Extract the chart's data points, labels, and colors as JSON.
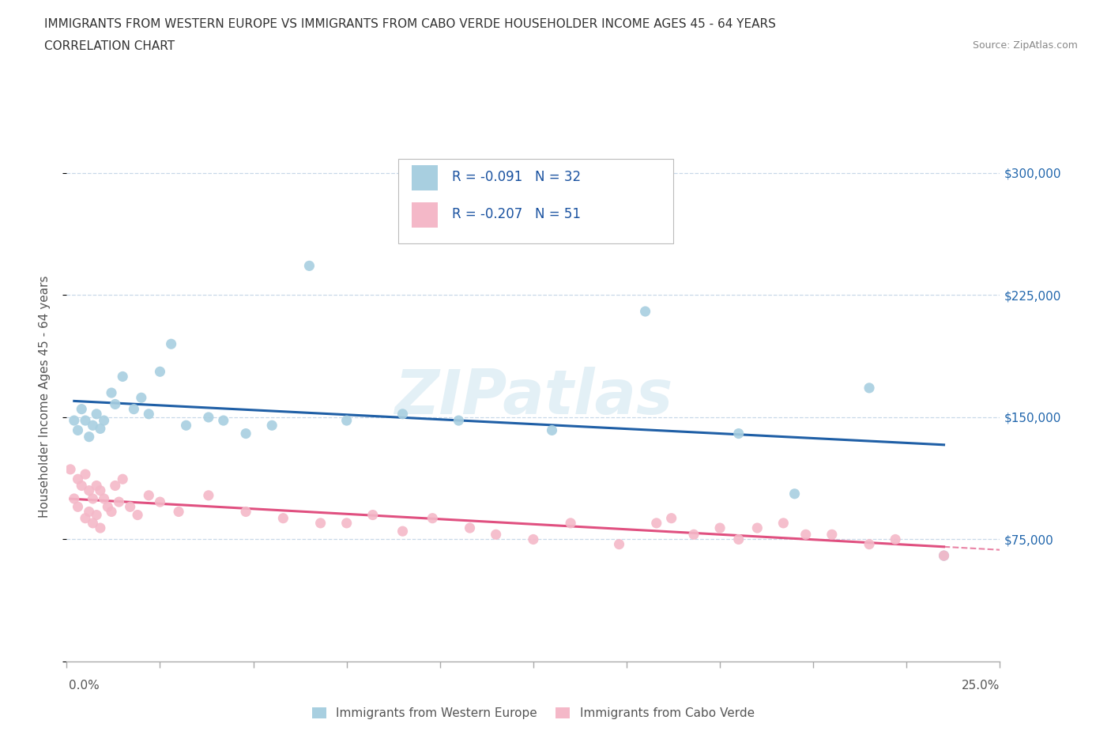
{
  "title_line1": "IMMIGRANTS FROM WESTERN EUROPE VS IMMIGRANTS FROM CABO VERDE HOUSEHOLDER INCOME AGES 45 - 64 YEARS",
  "title_line2": "CORRELATION CHART",
  "source": "Source: ZipAtlas.com",
  "ylabel": "Householder Income Ages 45 - 64 years",
  "xlim": [
    0.0,
    0.25
  ],
  "ylim": [
    0,
    325000
  ],
  "xticks": [
    0.0,
    0.025,
    0.05,
    0.075,
    0.1,
    0.125,
    0.15,
    0.175,
    0.2,
    0.225,
    0.25
  ],
  "yticks": [
    0,
    75000,
    150000,
    225000,
    300000
  ],
  "ytick_labels": [
    "",
    "$75,000",
    "$150,000",
    "$225,000",
    "$300,000"
  ],
  "legend_series1": "Immigrants from Western Europe",
  "legend_series2": "Immigrants from Cabo Verde",
  "color1": "#a8cfe0",
  "color2": "#f4b8c8",
  "trendline_color1": "#1f5fa6",
  "trendline_color2": "#e05080",
  "watermark_text": "ZIPatlas",
  "background_color": "#ffffff",
  "grid_color": "#c8d8e8",
  "western_europe_x": [
    0.002,
    0.003,
    0.004,
    0.005,
    0.006,
    0.007,
    0.008,
    0.009,
    0.01,
    0.012,
    0.013,
    0.015,
    0.018,
    0.02,
    0.022,
    0.025,
    0.028,
    0.032,
    0.038,
    0.042,
    0.048,
    0.055,
    0.065,
    0.075,
    0.09,
    0.105,
    0.13,
    0.155,
    0.18,
    0.195,
    0.215,
    0.235
  ],
  "western_europe_y": [
    148000,
    142000,
    155000,
    148000,
    138000,
    145000,
    152000,
    143000,
    148000,
    165000,
    158000,
    175000,
    155000,
    162000,
    152000,
    178000,
    195000,
    145000,
    150000,
    148000,
    140000,
    145000,
    243000,
    148000,
    152000,
    148000,
    142000,
    215000,
    140000,
    103000,
    168000,
    65000
  ],
  "cabo_verde_x": [
    0.001,
    0.002,
    0.003,
    0.003,
    0.004,
    0.005,
    0.005,
    0.006,
    0.006,
    0.007,
    0.007,
    0.008,
    0.008,
    0.009,
    0.009,
    0.01,
    0.011,
    0.012,
    0.013,
    0.014,
    0.015,
    0.017,
    0.019,
    0.022,
    0.025,
    0.03,
    0.038,
    0.048,
    0.058,
    0.068,
    0.075,
    0.082,
    0.09,
    0.098,
    0.108,
    0.115,
    0.125,
    0.135,
    0.148,
    0.158,
    0.162,
    0.168,
    0.175,
    0.18,
    0.185,
    0.192,
    0.198,
    0.205,
    0.215,
    0.222,
    0.235
  ],
  "cabo_verde_y": [
    118000,
    100000,
    112000,
    95000,
    108000,
    115000,
    88000,
    105000,
    92000,
    100000,
    85000,
    108000,
    90000,
    105000,
    82000,
    100000,
    95000,
    92000,
    108000,
    98000,
    112000,
    95000,
    90000,
    102000,
    98000,
    92000,
    102000,
    92000,
    88000,
    85000,
    85000,
    90000,
    80000,
    88000,
    82000,
    78000,
    75000,
    85000,
    72000,
    85000,
    88000,
    78000,
    82000,
    75000,
    82000,
    85000,
    78000,
    78000,
    72000,
    75000,
    65000
  ]
}
